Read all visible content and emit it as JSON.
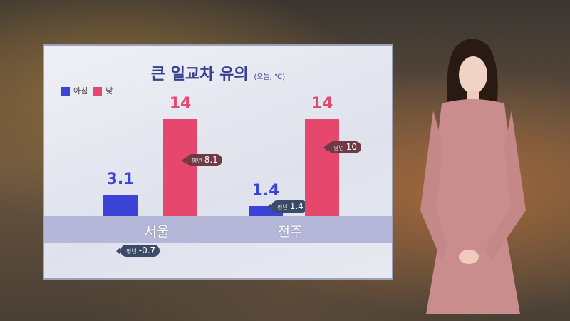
{
  "chart_data": {
    "type": "bar",
    "title": "큰 일교차 유의",
    "subtitle": "(오늘, ℃)",
    "categories": [
      "서울",
      "전주"
    ],
    "series": [
      {
        "name": "아침",
        "color": "#3c44d8",
        "values": [
          3.1,
          1.4
        ],
        "normals": [
          -0.7,
          1.4
        ],
        "callout_color": "#3b4a66"
      },
      {
        "name": "낮",
        "color": "#e5486c",
        "values": [
          14,
          14
        ],
        "normals": [
          8.1,
          10
        ],
        "callout_color": "#6e3a44"
      }
    ],
    "normal_label": "평년",
    "ylim": [
      0,
      14
    ]
  }
}
